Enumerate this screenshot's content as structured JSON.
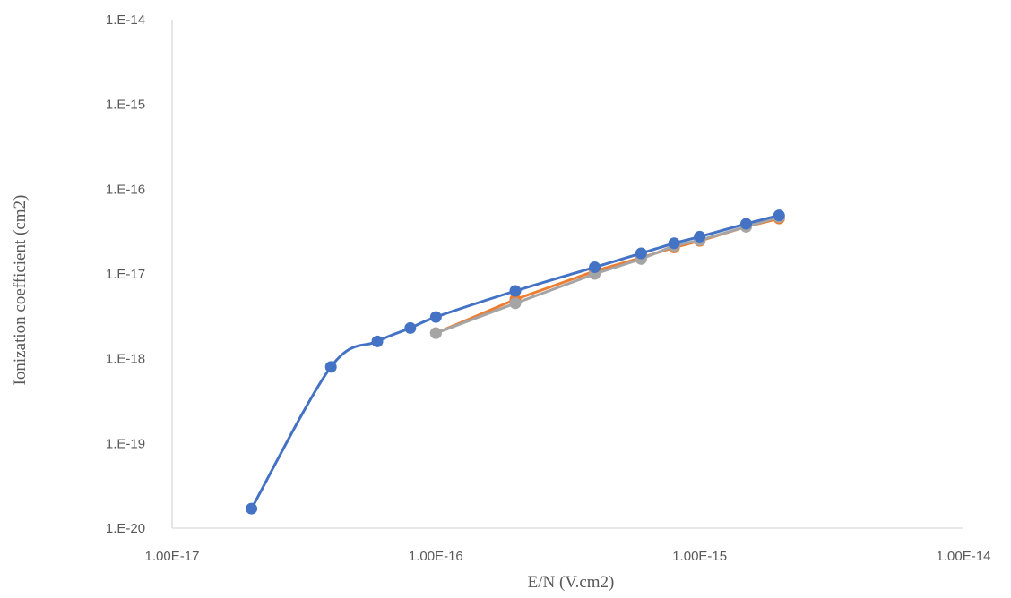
{
  "chart_data": {
    "type": "scatter",
    "title": "",
    "xlabel": "E/N (V.cm2)",
    "ylabel": "Ionization coefficient (cm2)",
    "x_scale": "log",
    "y_scale": "log",
    "xlim": [
      1e-17,
      1e-14
    ],
    "ylim": [
      1e-20,
      1e-14
    ],
    "x_tick_labels": [
      "1.00E-17",
      "1.00E-16",
      "1.00E-15",
      "1.00E-14"
    ],
    "y_tick_labels": [
      "1.E-20",
      "1.E-19",
      "1.E-18",
      "1.E-17",
      "1.E-16",
      "1.E-15",
      "1.E-14"
    ],
    "grid": false,
    "legend": "none",
    "series": [
      {
        "color": "#4472C4",
        "smooth": true,
        "x": [
          2e-17,
          4e-17,
          6e-17,
          8e-17,
          1e-16,
          2e-16,
          4e-16,
          6e-16,
          8e-16,
          1e-15,
          1.5e-15,
          2e-15
        ],
        "y": [
          1.7e-20,
          8e-19,
          1.6e-18,
          2.3e-18,
          3.1e-18,
          6.3e-18,
          1.2e-17,
          1.75e-17,
          2.3e-17,
          2.75e-17,
          3.9e-17,
          4.9e-17
        ]
      },
      {
        "color": "#ED7D31",
        "smooth": false,
        "x": [
          1e-16,
          2e-16,
          4e-16,
          6e-16,
          8e-16,
          1e-15,
          1.5e-15,
          2e-15
        ],
        "y": [
          2e-18,
          5e-18,
          1.08e-17,
          1.55e-17,
          2.05e-17,
          2.45e-17,
          3.6e-17,
          4.5e-17
        ]
      },
      {
        "color": "#A5A5A5",
        "smooth": false,
        "x": [
          1e-16,
          2e-16,
          4e-16,
          6e-16,
          8e-16,
          1e-15,
          1.5e-15,
          2e-15
        ],
        "y": [
          2e-18,
          4.5e-18,
          1e-17,
          1.5e-17,
          2.15e-17,
          2.5e-17,
          3.6e-17,
          4.7e-17
        ]
      }
    ]
  }
}
